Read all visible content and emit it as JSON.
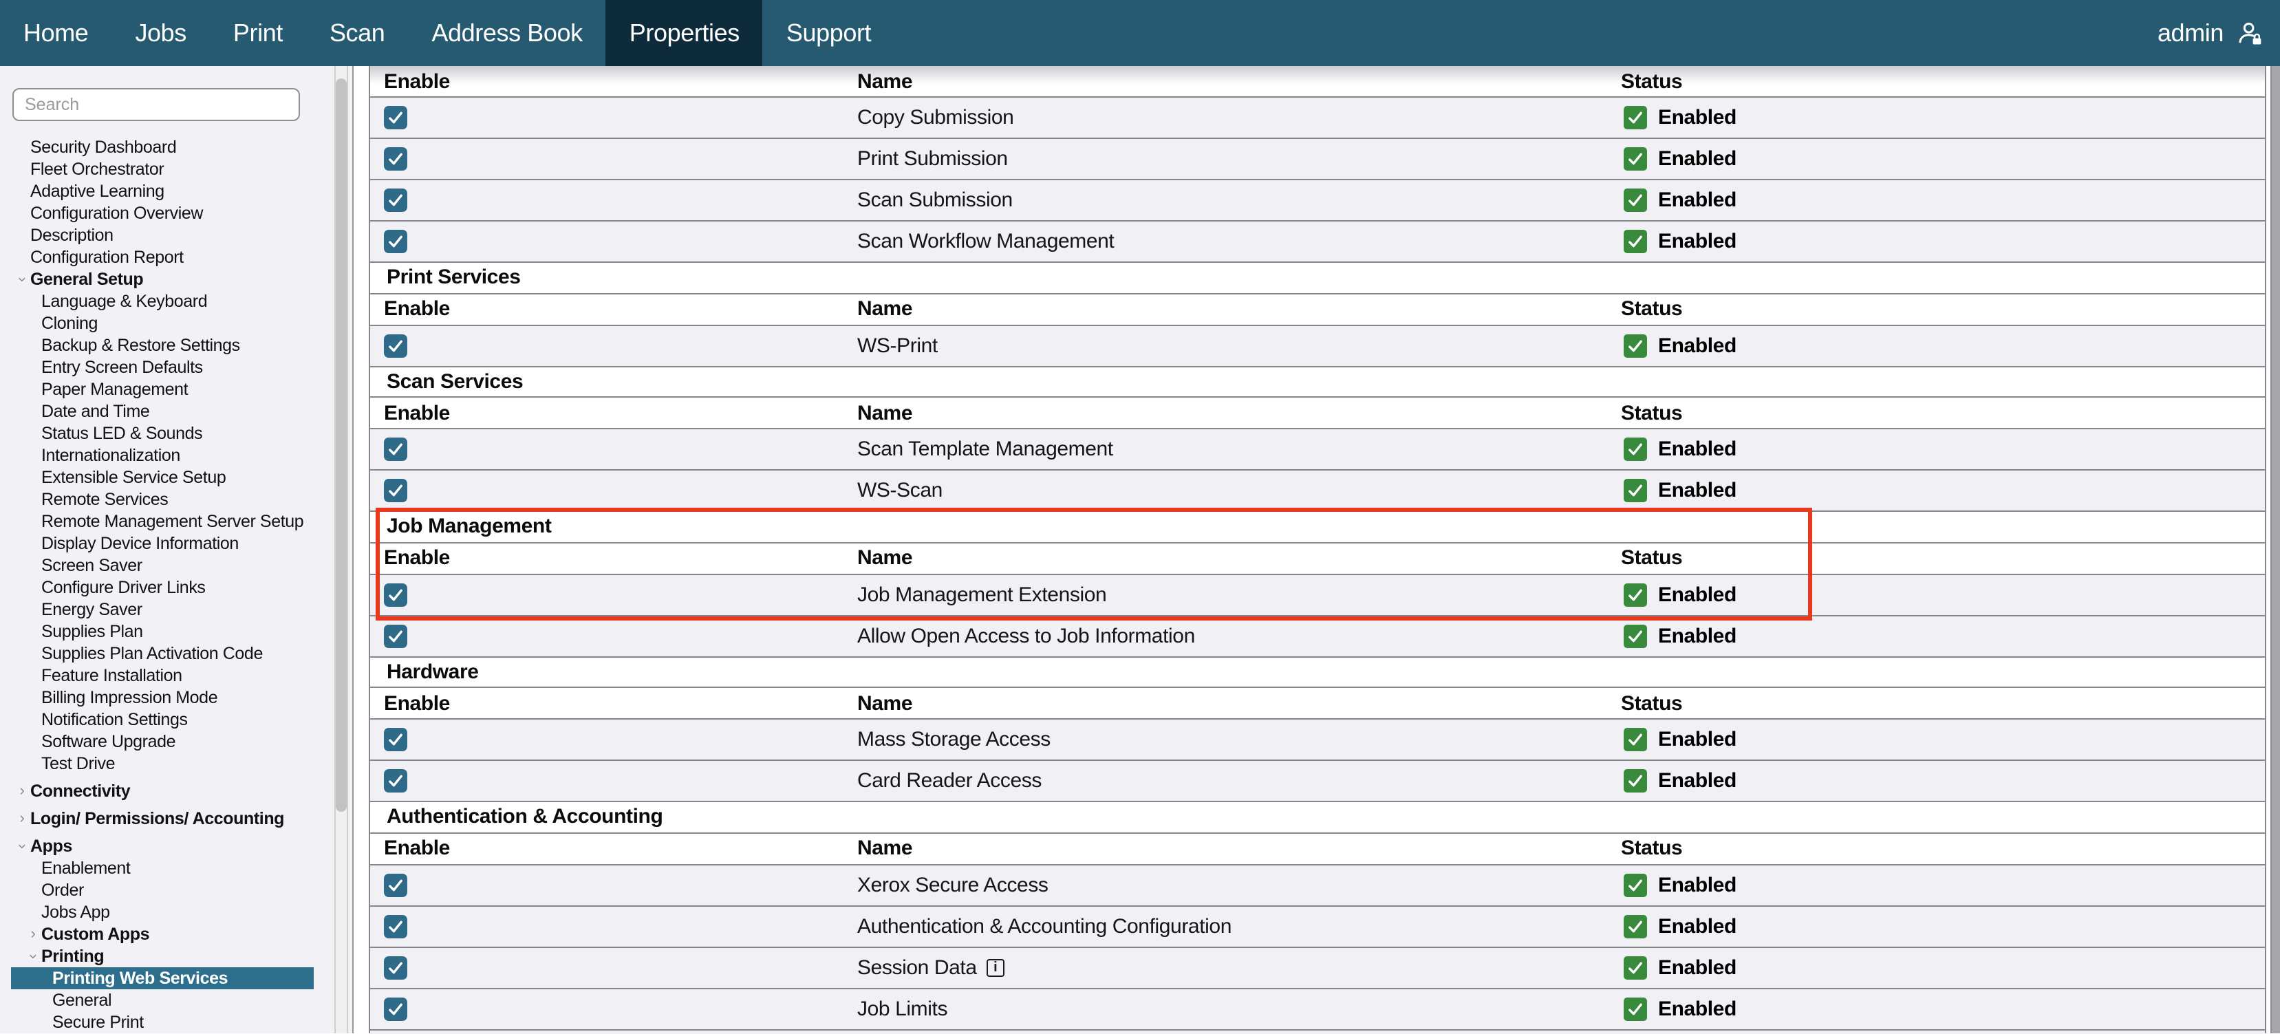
{
  "colors": {
    "nav_bg": "#255a71",
    "nav_active_tab_bg": "#0d2b3b",
    "sidebar_bg": "#f2f1f6",
    "sidebar_selected_bg": "#2d6e8c",
    "row_bg": "#f1f0f5",
    "row_border": "#85858b",
    "enable_checkbox": "#2f6b88",
    "status_green": "#3a8a3e",
    "annotation_red": "#e8391f"
  },
  "nav": {
    "tabs": [
      "Home",
      "Jobs",
      "Print",
      "Scan",
      "Address Book",
      "Properties",
      "Support"
    ],
    "active_tab": "Properties",
    "user_label": "admin"
  },
  "sidebar": {
    "search_placeholder": "Search",
    "items": [
      {
        "label": "Security Dashboard",
        "level": 1
      },
      {
        "label": "Fleet Orchestrator",
        "level": 1
      },
      {
        "label": "Adaptive Learning",
        "level": 1
      },
      {
        "label": "Configuration Overview",
        "level": 1
      },
      {
        "label": "Description",
        "level": 1
      },
      {
        "label": "Configuration Report",
        "level": 1
      },
      {
        "label": "General Setup",
        "level": 1,
        "bold": true,
        "chevron": "down"
      },
      {
        "label": "Language & Keyboard",
        "level": 2
      },
      {
        "label": "Cloning",
        "level": 2
      },
      {
        "label": "Backup & Restore Settings",
        "level": 2
      },
      {
        "label": "Entry Screen Defaults",
        "level": 2
      },
      {
        "label": "Paper Management",
        "level": 2
      },
      {
        "label": "Date and Time",
        "level": 2
      },
      {
        "label": "Status LED & Sounds",
        "level": 2
      },
      {
        "label": "Internationalization",
        "level": 2
      },
      {
        "label": "Extensible Service Setup",
        "level": 2
      },
      {
        "label": "Remote Services",
        "level": 2
      },
      {
        "label": "Remote Management Server Setup",
        "level": 2
      },
      {
        "label": "Display Device Information",
        "level": 2
      },
      {
        "label": "Screen Saver",
        "level": 2
      },
      {
        "label": "Configure Driver Links",
        "level": 2
      },
      {
        "label": "Energy Saver",
        "level": 2
      },
      {
        "label": "Supplies Plan",
        "level": 2
      },
      {
        "label": "Supplies Plan Activation Code",
        "level": 2
      },
      {
        "label": "Feature Installation",
        "level": 2
      },
      {
        "label": "Billing Impression Mode",
        "level": 2
      },
      {
        "label": "Notification Settings",
        "level": 2
      },
      {
        "label": "Software Upgrade",
        "level": 2
      },
      {
        "label": "Test Drive",
        "level": 2
      },
      {
        "label": "Connectivity",
        "level": 1,
        "bold": true,
        "chevron": "right",
        "gap": true
      },
      {
        "label": "Login/ Permissions/ Accounting",
        "level": 1,
        "bold": true,
        "chevron": "right",
        "gap": true
      },
      {
        "label": "Apps",
        "level": 1,
        "bold": true,
        "chevron": "down",
        "gap": true
      },
      {
        "label": "Enablement",
        "level": 2
      },
      {
        "label": "Order",
        "level": 2
      },
      {
        "label": "Jobs App",
        "level": 2
      },
      {
        "label": "Custom Apps",
        "level": 2,
        "bold": true,
        "chevron": "right"
      },
      {
        "label": "Printing",
        "level": 2,
        "bold": true,
        "chevron": "down"
      },
      {
        "label": "Printing Web Services",
        "level": 3,
        "selected": true
      },
      {
        "label": "General",
        "level": 3
      },
      {
        "label": "Secure Print",
        "level": 3
      }
    ]
  },
  "table": {
    "columns": {
      "enable": "Enable",
      "name": "Name",
      "status": "Status"
    },
    "status_enabled_label": "Enabled",
    "sections": [
      {
        "title": "",
        "rows": [
          {
            "name": "Copy Submission",
            "enabled": true,
            "status": "Enabled"
          },
          {
            "name": "Print Submission",
            "enabled": true,
            "status": "Enabled"
          },
          {
            "name": "Scan Submission",
            "enabled": true,
            "status": "Enabled"
          },
          {
            "name": "Scan Workflow Management",
            "enabled": true,
            "status": "Enabled"
          }
        ]
      },
      {
        "title": "Print Services",
        "rows": [
          {
            "name": "WS-Print",
            "enabled": true,
            "status": "Enabled"
          }
        ]
      },
      {
        "title": "Scan Services",
        "rows": [
          {
            "name": "Scan Template Management",
            "enabled": true,
            "status": "Enabled"
          },
          {
            "name": "WS-Scan",
            "enabled": true,
            "status": "Enabled"
          }
        ]
      },
      {
        "title": "Job Management",
        "rows": [
          {
            "name": "Job Management Extension",
            "enabled": true,
            "status": "Enabled"
          },
          {
            "name": "Allow Open Access to Job Information",
            "enabled": true,
            "status": "Enabled"
          }
        ]
      },
      {
        "title": "Hardware",
        "rows": [
          {
            "name": "Mass Storage Access",
            "enabled": true,
            "status": "Enabled"
          },
          {
            "name": "Card Reader Access",
            "enabled": true,
            "status": "Enabled"
          }
        ]
      },
      {
        "title": "Authentication & Accounting",
        "rows": [
          {
            "name": "Xerox Secure Access",
            "enabled": true,
            "status": "Enabled"
          },
          {
            "name": "Authentication & Accounting Configuration",
            "enabled": true,
            "status": "Enabled"
          },
          {
            "name": "Session Data",
            "enabled": true,
            "status": "Enabled",
            "info_icon": true
          },
          {
            "name": "Job Limits",
            "enabled": true,
            "status": "Enabled"
          }
        ]
      }
    ],
    "annotation": {
      "type": "highlight-box",
      "color": "#e8391f",
      "highlights": "Job Management section header and Job Management Extension row"
    }
  }
}
